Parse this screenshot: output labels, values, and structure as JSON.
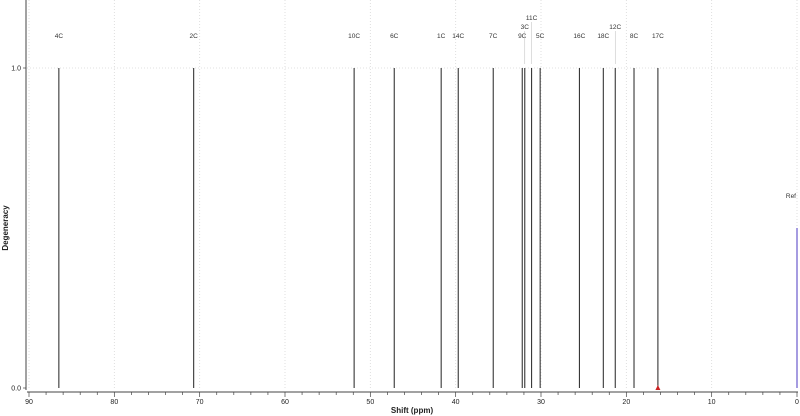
{
  "chart_data": {
    "type": "bar",
    "xlabel": "Shift (ppm)",
    "ylabel": "Degeneracy",
    "xlim": [
      90,
      0
    ],
    "ylim": [
      0,
      1
    ],
    "x_reversed": true,
    "x_ticks": [
      90,
      80,
      70,
      60,
      50,
      40,
      30,
      20,
      10,
      0
    ],
    "y_ticks": [
      "0.0",
      "1.0"
    ],
    "grid": true,
    "peaks": [
      {
        "label": "4C",
        "shift": 86.5,
        "degeneracy": 1
      },
      {
        "label": "2C",
        "shift": 70.7,
        "degeneracy": 1
      },
      {
        "label": "10C",
        "shift": 51.9,
        "degeneracy": 1
      },
      {
        "label": "6C",
        "shift": 47.2,
        "degeneracy": 1
      },
      {
        "label": "1C",
        "shift": 41.7,
        "degeneracy": 1
      },
      {
        "label": "14C",
        "shift": 39.7,
        "degeneracy": 1
      },
      {
        "label": "7C",
        "shift": 35.6,
        "degeneracy": 1
      },
      {
        "label": "9C",
        "shift": 32.2,
        "degeneracy": 1
      },
      {
        "label": "3C",
        "shift": 31.9,
        "degeneracy": 1
      },
      {
        "label": "11C",
        "shift": 31.1,
        "degeneracy": 1
      },
      {
        "label": "5C",
        "shift": 30.1,
        "degeneracy": 1
      },
      {
        "label": "16C",
        "shift": 25.5,
        "degeneracy": 1
      },
      {
        "label": "18C",
        "shift": 22.7,
        "degeneracy": 1
      },
      {
        "label": "12C",
        "shift": 21.3,
        "degeneracy": 1
      },
      {
        "label": "8C",
        "shift": 19.1,
        "degeneracy": 1
      },
      {
        "label": "17C",
        "shift": 16.3,
        "degeneracy": 1
      }
    ],
    "reference": {
      "label": "Ref",
      "shift": 0,
      "degeneracy": 0.5,
      "color": "#6a5acd"
    },
    "cursor_marker": {
      "shift": 16.3,
      "color": "#cc2222"
    },
    "peak_color": "#222222"
  }
}
